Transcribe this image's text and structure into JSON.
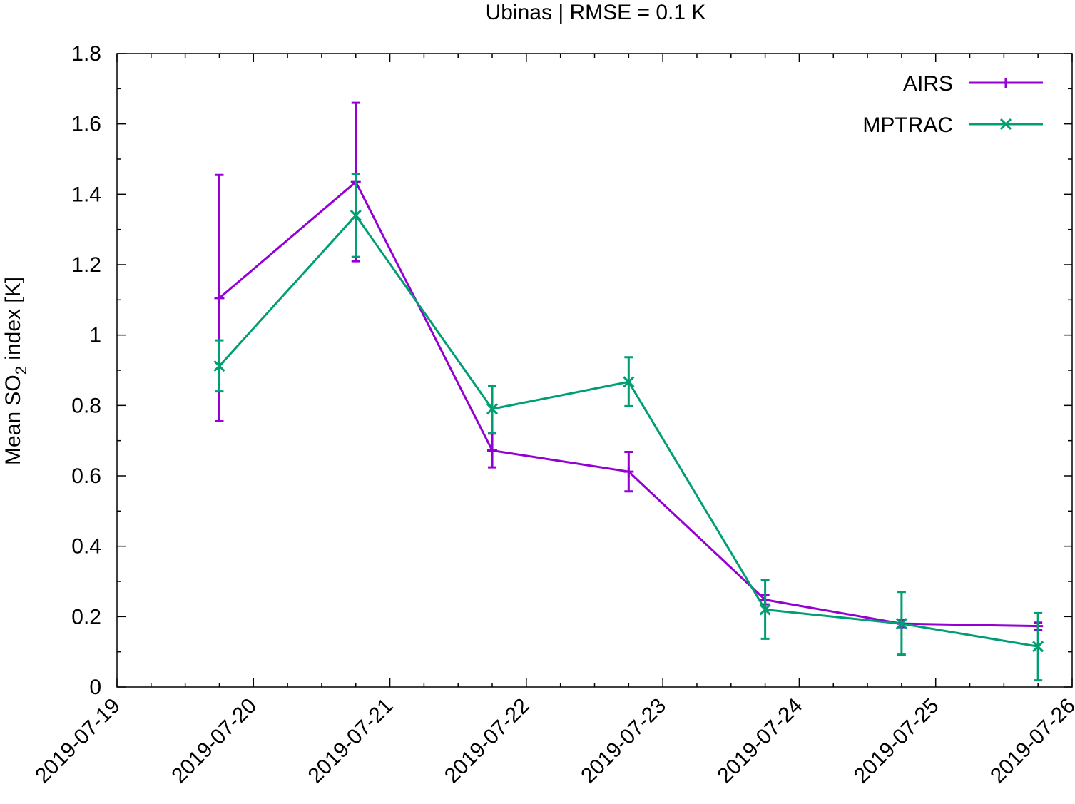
{
  "chart_data": {
    "type": "line",
    "title": "Ubinas | RMSE = 0.1 K",
    "xlabel": "",
    "ylabel": "Mean SO2 index [K]",
    "ylabel_parts": {
      "before": "Mean SO",
      "subscript": "2",
      "after": " index [K]"
    },
    "x_tick_labels": [
      "2019-07-19",
      "2019-07-20",
      "2019-07-21",
      "2019-07-22",
      "2019-07-23",
      "2019-07-24",
      "2019-07-25",
      "2019-07-26"
    ],
    "xlim": [
      "2019-07-19T00:00",
      "2019-07-26T00:00"
    ],
    "y_tick_labels": [
      "0",
      "0.2",
      "0.4",
      "0.6",
      "0.8",
      "1",
      "1.2",
      "1.4",
      "1.6",
      "1.8"
    ],
    "ylim": [
      0,
      1.8
    ],
    "grid": false,
    "legend_position": "top-right",
    "series": [
      {
        "name": "AIRS",
        "color": "#9400d3",
        "marker": "plus",
        "x": [
          "2019-07-19T18:00",
          "2019-07-20T18:00",
          "2019-07-21T18:00",
          "2019-07-22T18:00",
          "2019-07-23T18:00",
          "2019-07-24T18:00",
          "2019-07-25T18:00"
        ],
        "y": [
          1.105,
          1.435,
          0.672,
          0.612,
          0.248,
          0.18,
          0.173
        ],
        "err_low": [
          0.755,
          1.21,
          0.624,
          0.556,
          0.235,
          0.17,
          0.163
        ],
        "err_high": [
          1.455,
          1.66,
          0.72,
          0.668,
          0.262,
          0.19,
          0.183
        ]
      },
      {
        "name": "MPTRAC",
        "color": "#009e73",
        "marker": "cross",
        "x": [
          "2019-07-19T18:00",
          "2019-07-20T18:00",
          "2019-07-21T18:00",
          "2019-07-22T18:00",
          "2019-07-23T18:00",
          "2019-07-24T18:00",
          "2019-07-25T18:00"
        ],
        "y": [
          0.912,
          1.34,
          0.79,
          0.867,
          0.22,
          0.18,
          0.115
        ],
        "err_low": [
          0.84,
          1.222,
          0.722,
          0.798,
          0.137,
          0.092,
          0.019
        ],
        "err_high": [
          0.985,
          1.458,
          0.855,
          0.937,
          0.304,
          0.27,
          0.21
        ]
      }
    ]
  }
}
